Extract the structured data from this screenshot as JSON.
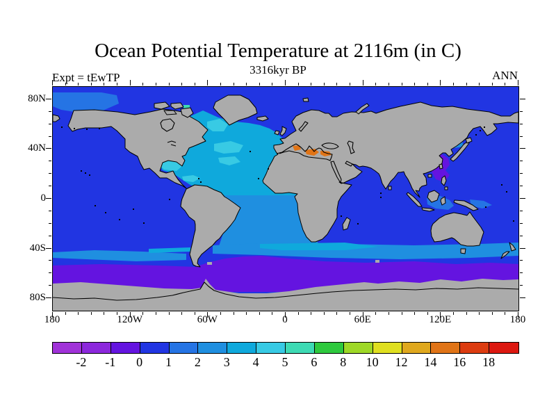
{
  "header": {
    "title": "Ocean Potential Temperature at 2116m (in C)",
    "subtitle": "3316kyr BP",
    "experiment_label": "Expt = tEwTP",
    "season_label": "ANN"
  },
  "map": {
    "projection": "equirectangular",
    "lon_range": [
      -180,
      180
    ],
    "lat_range": [
      -90,
      90
    ],
    "land_color": "#ABABAB",
    "coastline_color": "#000000",
    "frame_color": "#000000",
    "x_axis": {
      "ticks": [
        {
          "label": "180",
          "lon": -180
        },
        {
          "label": "120W",
          "lon": -120
        },
        {
          "label": "60W",
          "lon": -60
        },
        {
          "label": "0",
          "lon": 0
        },
        {
          "label": "60E",
          "lon": 60
        },
        {
          "label": "120E",
          "lon": 120
        },
        {
          "label": "180",
          "lon": 180
        }
      ],
      "minor_tick_interval_deg": 10,
      "major_tick_interval_deg": 60
    },
    "y_axis": {
      "ticks": [
        {
          "label": "80N",
          "lat": 80
        },
        {
          "label": "40N",
          "lat": 40
        },
        {
          "label": "0",
          "lat": 0
        },
        {
          "label": "40S",
          "lat": -40
        },
        {
          "label": "80S",
          "lat": -80
        }
      ],
      "minor_tick_interval_deg": 10,
      "major_tick_interval_deg": 40
    }
  },
  "colorbar": {
    "boundary_labels": [
      "-2",
      "-1",
      "0",
      "1",
      "2",
      "3",
      "4",
      "5",
      "6",
      "8",
      "10",
      "12",
      "14",
      "16",
      "18"
    ],
    "segment_colors": [
      {
        "range": "< -2",
        "color": "#A032D8"
      },
      {
        "range": "-2 to -1",
        "color": "#8C28DC"
      },
      {
        "range": "-1 to 0",
        "color": "#6414E0"
      },
      {
        "range": "0 to 1",
        "color": "#2135E2"
      },
      {
        "range": "1 to 2",
        "color": "#2574E4"
      },
      {
        "range": "2 to 3",
        "color": "#1F8FE0"
      },
      {
        "range": "3 to 4",
        "color": "#0FA9DC"
      },
      {
        "range": "4 to 5",
        "color": "#38CAE4"
      },
      {
        "range": "5 to 6",
        "color": "#3EDAB4"
      },
      {
        "range": "6 to 8",
        "color": "#2EC93E"
      },
      {
        "range": "8 to 10",
        "color": "#9ED827"
      },
      {
        "range": "10 to 12",
        "color": "#DFDF20"
      },
      {
        "range": "12 to 14",
        "color": "#DFA81E"
      },
      {
        "range": "14 to 16",
        "color": "#E07417"
      },
      {
        "range": "16 to 18",
        "color": "#DC3C10"
      },
      {
        "range": "> 18",
        "color": "#DC1810"
      }
    ]
  },
  "chart_data": {
    "type": "heatmap",
    "title": "Ocean Potential Temperature at 2116m (in C)",
    "subtitle": "3316kyr BP",
    "experiment": "tEwTP",
    "season": "ANN",
    "field": "ocean potential temperature",
    "depth_m": 2116,
    "units": "C",
    "contour_levels": [
      -2,
      -1,
      0,
      1,
      2,
      3,
      4,
      5,
      6,
      8,
      10,
      12,
      14,
      16,
      18
    ],
    "x_ticks": [
      "180",
      "120W",
      "60W",
      "0",
      "60E",
      "120E",
      "180"
    ],
    "y_ticks": [
      "80N",
      "40N",
      "0",
      "40S",
      "80S"
    ],
    "land_mask": "gray with black coastlines",
    "regions": [
      {
        "region": "Global deep-ocean background (Pacific, Indian, Arctic, Bering)",
        "value_range_C": "0 to 1"
      },
      {
        "region": "Beaufort/Chukchi Arctic patch",
        "value_range_C": "1 to 2"
      },
      {
        "region": "North Atlantic 0-60N",
        "value_range_C": "3 to 4"
      },
      {
        "region": "Labrador Sea, western subtropical N Atlantic, Gulf of Mexico, Caribbean cores",
        "value_range_C": "4 to 5"
      },
      {
        "region": "Baffin Bay spot",
        "value_range_C": "5 to 6"
      },
      {
        "region": "Mediterranean deep basins",
        "value_range_C": "14 to 16"
      },
      {
        "region": "Sea of Japan patch",
        "value_range_C": "2 to 3"
      },
      {
        "region": "NW Pacific / Philippine Sea coastal patch",
        "value_range_C": "-1 to 0"
      },
      {
        "region": "Banda-Arafura seas and Solomon Sea patches",
        "value_range_C": "1 to 2"
      },
      {
        "region": "Tropical South Atlantic",
        "value_range_C": "2 to 3"
      },
      {
        "region": "Brazil-coast wedge of South Atlantic",
        "value_range_C": "3 to 4"
      },
      {
        "region": "Southern mid-latitude band ~35S-48S",
        "value_range_C": "2 to 3 with 3-4 streaks"
      },
      {
        "region": "Subpolar Southern Ocean ~48S-55S",
        "value_range_C": "0 to 1"
      },
      {
        "region": "Antarctic circumpolar band ~55S-66S",
        "value_range_C": "-1 to 0"
      }
    ]
  }
}
